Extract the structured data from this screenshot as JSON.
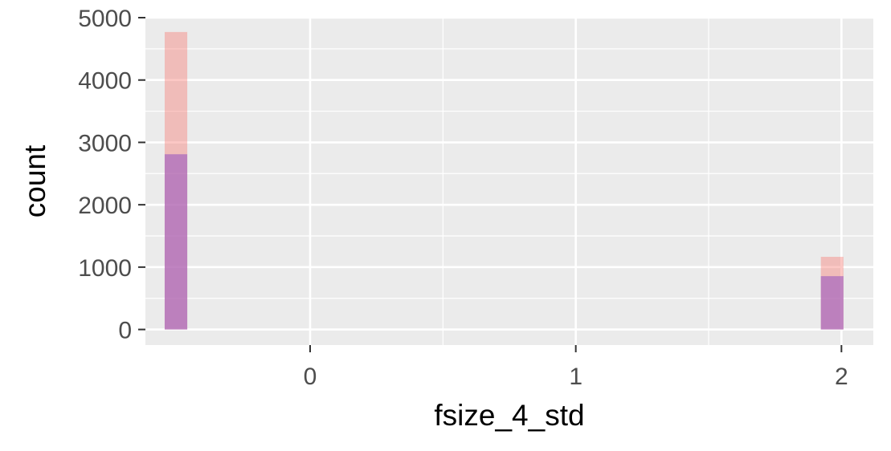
{
  "chart_data": {
    "type": "bar",
    "subtype": "overlaid-histogram",
    "title": "",
    "xlabel": "fsize_4_std",
    "ylabel": "count",
    "xlim": [
      -0.62,
      2.12
    ],
    "ylim": [
      -250,
      5000
    ],
    "x_ticks": [
      0,
      1,
      2
    ],
    "y_ticks": [
      0,
      1000,
      2000,
      3000,
      4000,
      5000
    ],
    "grid": true,
    "legend": "none",
    "background": "#ebebeb",
    "bin_width": 0.085,
    "series": [
      {
        "color": "#f8766d",
        "opacity": 0.4,
        "bins": [
          {
            "x": -0.505,
            "count": 4770
          },
          {
            "x": 1.965,
            "count": 1165
          }
        ]
      },
      {
        "color": "#9f5fbf",
        "opacity": 0.65,
        "bins": [
          {
            "x": -0.505,
            "count": 2810
          },
          {
            "x": 1.965,
            "count": 855
          }
        ]
      }
    ]
  }
}
